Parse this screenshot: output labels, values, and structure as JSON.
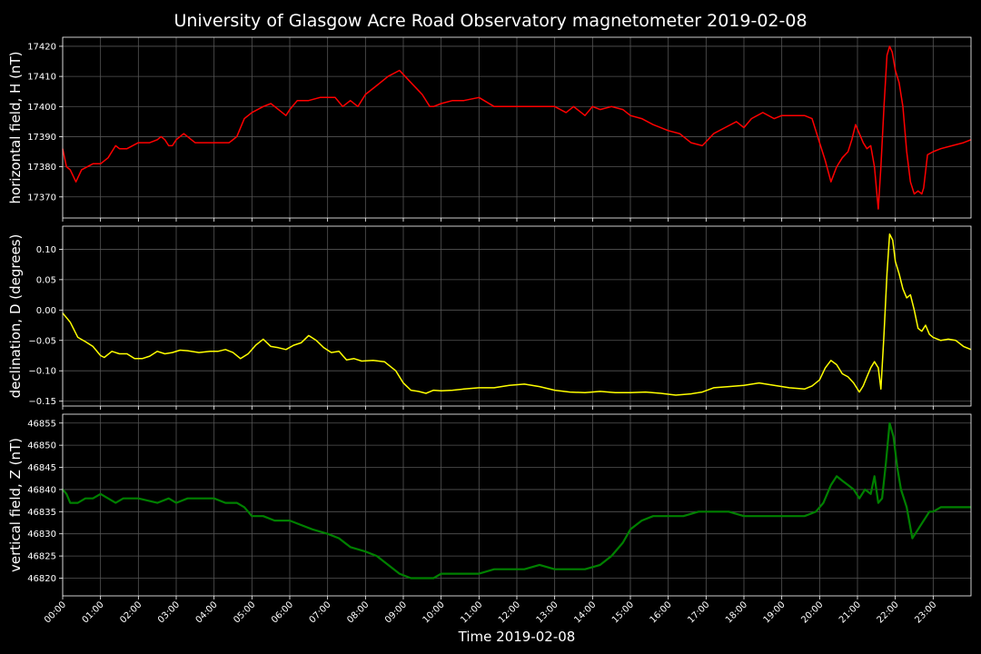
{
  "chart_data": {
    "type": "line",
    "title": "University of Glasgow Acre Road Observatory magnetometer 2019-02-08",
    "xlabel": "Time 2019-02-08",
    "x_unit": "hours",
    "xlim": [
      0,
      24
    ],
    "grid": true,
    "x_ticks": [
      "00:00",
      "01:00",
      "02:00",
      "03:00",
      "04:00",
      "05:00",
      "06:00",
      "07:00",
      "08:00",
      "09:00",
      "10:00",
      "11:00",
      "12:00",
      "13:00",
      "14:00",
      "15:00",
      "16:00",
      "17:00",
      "18:00",
      "19:00",
      "20:00",
      "21:00",
      "22:00",
      "23:00"
    ],
    "panels": [
      {
        "ylabel": "horizontal field, H (nT)",
        "color": "#ff0000",
        "ylim": [
          17363,
          17423
        ],
        "y_ticks": [
          "17370",
          "17380",
          "17390",
          "17400",
          "17410",
          "17420"
        ],
        "x": [
          0,
          0.1,
          0.2,
          0.35,
          0.5,
          0.8,
          1.0,
          1.2,
          1.4,
          1.5,
          1.7,
          2.0,
          2.3,
          2.5,
          2.6,
          2.7,
          2.8,
          2.9,
          3.0,
          3.2,
          3.5,
          3.8,
          4.0,
          4.2,
          4.4,
          4.6,
          4.8,
          5.0,
          5.3,
          5.5,
          5.7,
          5.9,
          6.0,
          6.2,
          6.5,
          6.8,
          7.0,
          7.2,
          7.4,
          7.6,
          7.8,
          8.0,
          8.3,
          8.6,
          8.9,
          9.2,
          9.5,
          9.7,
          9.8,
          10.0,
          10.3,
          10.6,
          11.0,
          11.4,
          11.8,
          12.2,
          12.6,
          13.0,
          13.3,
          13.5,
          13.8,
          14.0,
          14.2,
          14.5,
          14.8,
          15.0,
          15.3,
          15.6,
          16.0,
          16.3,
          16.6,
          16.9,
          17.2,
          17.5,
          17.8,
          18.0,
          18.2,
          18.5,
          18.8,
          19.0,
          19.3,
          19.6,
          19.8,
          20.0,
          20.15,
          20.3,
          20.45,
          20.6,
          20.75,
          20.85,
          20.95,
          21.05,
          21.15,
          21.25,
          21.35,
          21.45,
          21.55,
          21.62,
          21.7,
          21.78,
          21.85,
          21.92,
          22.0,
          22.1,
          22.2,
          22.3,
          22.4,
          22.5,
          22.6,
          22.7,
          22.75,
          22.85,
          23.0,
          23.2,
          23.5,
          23.8,
          24.0
        ],
        "values": [
          17386,
          17380,
          17379,
          17375,
          17379,
          17381,
          17381,
          17383,
          17387,
          17386,
          17386,
          17388,
          17388,
          17389,
          17390,
          17389,
          17387,
          17387,
          17389,
          17391,
          17388,
          17388,
          17388,
          17388,
          17388,
          17390,
          17396,
          17398,
          17400,
          17401,
          17399,
          17397,
          17399,
          17402,
          17402,
          17403,
          17403,
          17403,
          17400,
          17402,
          17400,
          17404,
          17407,
          17410,
          17412,
          17408,
          17404,
          17400,
          17400,
          17401,
          17402,
          17402,
          17403,
          17400,
          17400,
          17400,
          17400,
          17400,
          17398,
          17400,
          17397,
          17400,
          17399,
          17400,
          17399,
          17397,
          17396,
          17394,
          17392,
          17391,
          17388,
          17387,
          17391,
          17393,
          17395,
          17393,
          17396,
          17398,
          17396,
          17397,
          17397,
          17397,
          17396,
          17388,
          17382,
          17375,
          17380,
          17383,
          17385,
          17389,
          17394,
          17391,
          17388,
          17386,
          17387,
          17380,
          17366,
          17380,
          17400,
          17417,
          17420,
          17418,
          17412,
          17408,
          17400,
          17385,
          17375,
          17371,
          17372,
          17371,
          17373,
          17384,
          17385,
          17386,
          17387,
          17388,
          17389
        ]
      },
      {
        "ylabel": "declination, D (degrees)",
        "color": "#ffff00",
        "ylim": [
          -0.158,
          0.138
        ],
        "y_ticks": [
          "0.10",
          "0.05",
          "0.00",
          "−0.05",
          "−0.10",
          "−0.15"
        ],
        "x": [
          0,
          0.2,
          0.4,
          0.6,
          0.8,
          1.0,
          1.1,
          1.3,
          1.5,
          1.7,
          1.9,
          2.1,
          2.3,
          2.5,
          2.7,
          2.9,
          3.1,
          3.3,
          3.6,
          3.9,
          4.1,
          4.3,
          4.5,
          4.7,
          4.9,
          5.1,
          5.3,
          5.5,
          5.7,
          5.9,
          6.1,
          6.3,
          6.5,
          6.7,
          6.9,
          7.1,
          7.3,
          7.5,
          7.7,
          7.9,
          8.2,
          8.5,
          8.8,
          9.0,
          9.2,
          9.4,
          9.6,
          9.8,
          10.0,
          10.3,
          10.6,
          11.0,
          11.4,
          11.8,
          12.2,
          12.6,
          13.0,
          13.4,
          13.8,
          14.2,
          14.6,
          15.0,
          15.4,
          15.8,
          16.2,
          16.6,
          16.9,
          17.2,
          17.6,
          18.0,
          18.4,
          18.8,
          19.2,
          19.6,
          19.8,
          20.0,
          20.15,
          20.3,
          20.45,
          20.6,
          20.75,
          20.9,
          21.05,
          21.15,
          21.25,
          21.35,
          21.45,
          21.55,
          21.62,
          21.7,
          21.78,
          21.85,
          21.93,
          22.0,
          22.1,
          22.2,
          22.3,
          22.4,
          22.5,
          22.6,
          22.7,
          22.8,
          22.9,
          23.0,
          23.2,
          23.4,
          23.6,
          23.8,
          24.0
        ],
        "values": [
          -0.005,
          -0.02,
          -0.045,
          -0.052,
          -0.06,
          -0.075,
          -0.078,
          -0.068,
          -0.072,
          -0.072,
          -0.08,
          -0.08,
          -0.076,
          -0.068,
          -0.072,
          -0.07,
          -0.066,
          -0.067,
          -0.07,
          -0.068,
          -0.068,
          -0.065,
          -0.07,
          -0.08,
          -0.072,
          -0.058,
          -0.048,
          -0.06,
          -0.062,
          -0.065,
          -0.058,
          -0.054,
          -0.042,
          -0.05,
          -0.062,
          -0.07,
          -0.068,
          -0.082,
          -0.08,
          -0.084,
          -0.083,
          -0.085,
          -0.1,
          -0.12,
          -0.132,
          -0.134,
          -0.137,
          -0.132,
          -0.133,
          -0.132,
          -0.13,
          -0.128,
          -0.128,
          -0.124,
          -0.122,
          -0.126,
          -0.132,
          -0.135,
          -0.136,
          -0.134,
          -0.136,
          -0.136,
          -0.135,
          -0.137,
          -0.14,
          -0.138,
          -0.135,
          -0.128,
          -0.126,
          -0.124,
          -0.12,
          -0.124,
          -0.128,
          -0.13,
          -0.125,
          -0.115,
          -0.095,
          -0.083,
          -0.09,
          -0.105,
          -0.11,
          -0.12,
          -0.135,
          -0.125,
          -0.11,
          -0.095,
          -0.085,
          -0.095,
          -0.13,
          -0.04,
          0.06,
          0.125,
          0.115,
          0.08,
          0.06,
          0.035,
          0.02,
          0.025,
          0.0,
          -0.03,
          -0.035,
          -0.025,
          -0.04,
          -0.045,
          -0.05,
          -0.048,
          -0.05,
          -0.06,
          -0.065
        ]
      },
      {
        "ylabel": "vertical field, Z (nT)",
        "color": "#008000",
        "ylim": [
          46816,
          46857
        ],
        "y_ticks": [
          "46855",
          "46850",
          "46845",
          "46840",
          "46835",
          "46830",
          "46825",
          "46820"
        ],
        "x": [
          0,
          0.1,
          0.2,
          0.4,
          0.6,
          0.8,
          1.0,
          1.2,
          1.4,
          1.6,
          2.0,
          2.5,
          2.8,
          3.0,
          3.3,
          3.6,
          4.0,
          4.3,
          4.6,
          4.8,
          5.0,
          5.3,
          5.6,
          6.0,
          6.3,
          6.6,
          7.0,
          7.3,
          7.6,
          8.0,
          8.3,
          8.6,
          8.9,
          9.2,
          9.5,
          9.8,
          10.0,
          10.3,
          10.6,
          11.0,
          11.4,
          11.8,
          12.2,
          12.6,
          13.0,
          13.4,
          13.8,
          14.2,
          14.5,
          14.8,
          15.0,
          15.3,
          15.6,
          16.0,
          16.4,
          16.8,
          17.2,
          17.6,
          18.0,
          18.4,
          18.8,
          19.2,
          19.6,
          19.9,
          20.1,
          20.3,
          20.45,
          20.6,
          20.75,
          20.9,
          21.05,
          21.2,
          21.35,
          21.45,
          21.55,
          21.65,
          21.75,
          21.85,
          21.95,
          22.05,
          22.15,
          22.3,
          22.45,
          22.6,
          22.75,
          22.9,
          23.0,
          23.2,
          23.5,
          23.8,
          24.0
        ],
        "values": [
          46840,
          46839,
          46837,
          46837,
          46838,
          46838,
          46839,
          46838,
          46837,
          46838,
          46838,
          46837,
          46838,
          46837,
          46838,
          46838,
          46838,
          46837,
          46837,
          46836,
          46834,
          46834,
          46833,
          46833,
          46832,
          46831,
          46830,
          46829,
          46827,
          46826,
          46825,
          46823,
          46821,
          46820,
          46820,
          46820,
          46821,
          46821,
          46821,
          46821,
          46822,
          46822,
          46822,
          46823,
          46822,
          46822,
          46822,
          46823,
          46825,
          46828,
          46831,
          46833,
          46834,
          46834,
          46834,
          46835,
          46835,
          46835,
          46834,
          46834,
          46834,
          46834,
          46834,
          46835,
          46837,
          46841,
          46843,
          46842,
          46841,
          46840,
          46838,
          46840,
          46839,
          46843,
          46837,
          46838,
          46846,
          46855,
          46852,
          46845,
          46840,
          46836,
          46829,
          46831,
          46833,
          46835,
          46835,
          46836,
          46836,
          46836,
          46836
        ]
      }
    ]
  }
}
